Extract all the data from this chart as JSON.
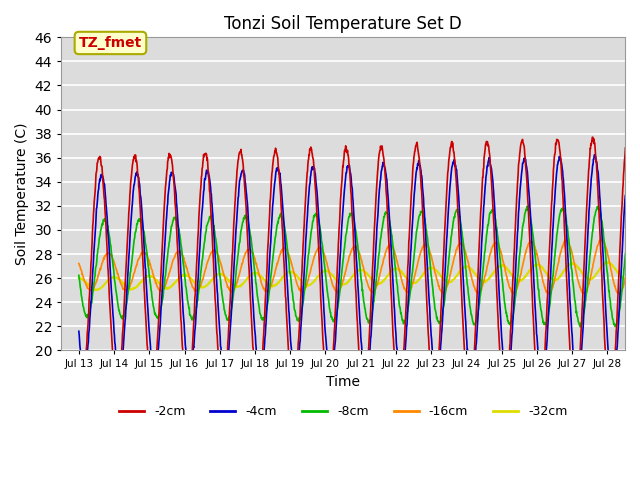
{
  "title": "Tonzi Soil Temperature Set D",
  "xlabel": "Time",
  "ylabel": "Soil Temperature (C)",
  "ylim": [
    20,
    46
  ],
  "xlim": [
    12.5,
    28.5
  ],
  "bg_color": "#dcdcdc",
  "grid_color": "white",
  "series": {
    "-2cm": {
      "color": "#cc0000",
      "lw": 1.2
    },
    "-4cm": {
      "color": "#0000cc",
      "lw": 1.2
    },
    "-8cm": {
      "color": "#00bb00",
      "lw": 1.2
    },
    "-16cm": {
      "color": "#ff8800",
      "lw": 1.2
    },
    "-32cm": {
      "color": "#dddd00",
      "lw": 1.5
    }
  },
  "annotation_text": "TZ_fmet",
  "annotation_color": "#cc0000",
  "annotation_bg": "#ffffcc",
  "annotation_border": "#aaaa00",
  "xtick_labels": [
    "Jul 13",
    "Jul 14",
    "Jul 15",
    "Jul 16",
    "Jul 17",
    "Jul 18",
    "Jul 19",
    "Jul 20",
    "Jul 21",
    "Jul 22",
    "Jul 23",
    "Jul 24",
    "Jul 25",
    "Jul 26",
    "Jul 27",
    "Jul 28"
  ],
  "xtick_positions": [
    13,
    14,
    15,
    16,
    17,
    18,
    19,
    20,
    21,
    22,
    23,
    24,
    25,
    26,
    27,
    28
  ],
  "ytick_positions": [
    20,
    22,
    24,
    26,
    28,
    30,
    32,
    34,
    36,
    38,
    40,
    42,
    44,
    46
  ]
}
